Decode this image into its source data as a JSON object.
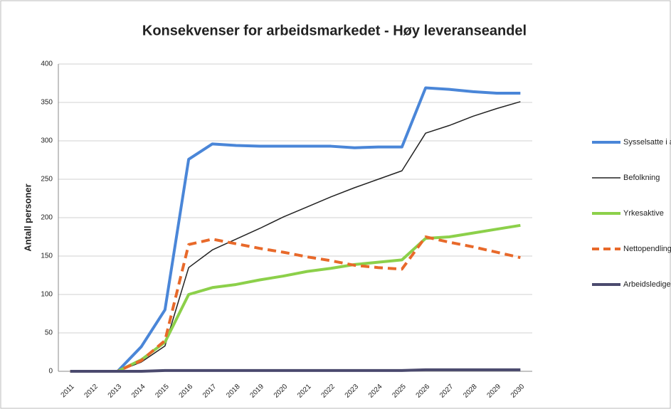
{
  "chart_data": {
    "type": "line",
    "title": "Konsekvenser for arbeidsmarkedet - Høy leveranseandel",
    "y_label": "Antall personer",
    "categories": [
      "2011",
      "2012",
      "2013",
      "2014",
      "2015",
      "2016",
      "2017",
      "2018",
      "2019",
      "2020",
      "2021",
      "2022",
      "2023",
      "2024",
      "2025",
      "2026",
      "2027",
      "2028",
      "2029",
      "2030"
    ],
    "series": [
      {
        "name": "Sysselsatte i alt",
        "color": "#4a86d8",
        "values": [
          0,
          0,
          0,
          32,
          80,
          276,
          296,
          294,
          293,
          293,
          293,
          293,
          291,
          292,
          292,
          369,
          367,
          364,
          362,
          362
        ]
      },
      {
        "name": "Befolkning",
        "color": "#222222",
        "values": [
          0,
          0,
          0,
          12,
          33,
          135,
          158,
          172,
          186,
          201,
          214,
          227,
          239,
          250,
          261,
          310,
          320,
          332,
          342,
          351
        ]
      },
      {
        "name": "Yrkesaktive",
        "color": "#8cd04a",
        "values": [
          0,
          0,
          0,
          15,
          38,
          100,
          109,
          113,
          119,
          124,
          130,
          134,
          139,
          142,
          145,
          173,
          175,
          180,
          185,
          190
        ]
      },
      {
        "name": "Nettopendling",
        "color": "#e8692a",
        "dashed": true,
        "values": [
          0,
          0,
          0,
          14,
          40,
          165,
          172,
          166,
          160,
          155,
          149,
          144,
          138,
          135,
          133,
          175,
          168,
          162,
          155,
          148
        ]
      },
      {
        "name": "Arbeidsledige",
        "color": "#4b4a6e",
        "values": [
          0,
          0,
          0,
          0,
          1,
          1,
          1,
          1,
          1,
          1,
          1,
          1,
          1,
          1,
          1,
          2,
          2,
          2,
          2,
          2
        ]
      }
    ],
    "ylim": [
      0,
      400
    ],
    "yticks": [
      0,
      50,
      100,
      150,
      200,
      250,
      300,
      350,
      400
    ],
    "grid": true,
    "legend": "right"
  }
}
